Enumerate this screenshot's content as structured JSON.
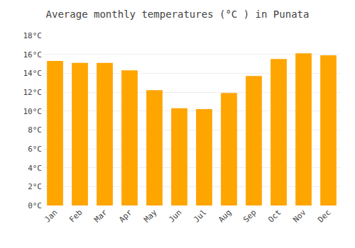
{
  "chart_data": {
    "type": "bar",
    "title": "Average monthly temperatures (°C ) in Punata",
    "categories": [
      "Jan",
      "Feb",
      "Mar",
      "Apr",
      "May",
      "Jun",
      "Jul",
      "Aug",
      "Sep",
      "Oct",
      "Nov",
      "Dec"
    ],
    "values": [
      15.3,
      15.1,
      15.1,
      14.3,
      12.2,
      10.3,
      10.2,
      11.9,
      13.7,
      15.5,
      16.1,
      15.9
    ],
    "color": "#FFA500",
    "ylim": [
      0,
      18
    ],
    "yticks": [
      {
        "value": 0,
        "label": "0°C"
      },
      {
        "value": 2,
        "label": "2°C"
      },
      {
        "value": 4,
        "label": "4°C"
      },
      {
        "value": 6,
        "label": "6°C"
      },
      {
        "value": 8,
        "label": "8°C"
      },
      {
        "value": 10,
        "label": "10°C"
      },
      {
        "value": 12,
        "label": "12°C"
      },
      {
        "value": 14,
        "label": "14°C"
      },
      {
        "value": 16,
        "label": "16°C"
      },
      {
        "value": 18,
        "label": "18°C"
      }
    ],
    "grid": true
  }
}
